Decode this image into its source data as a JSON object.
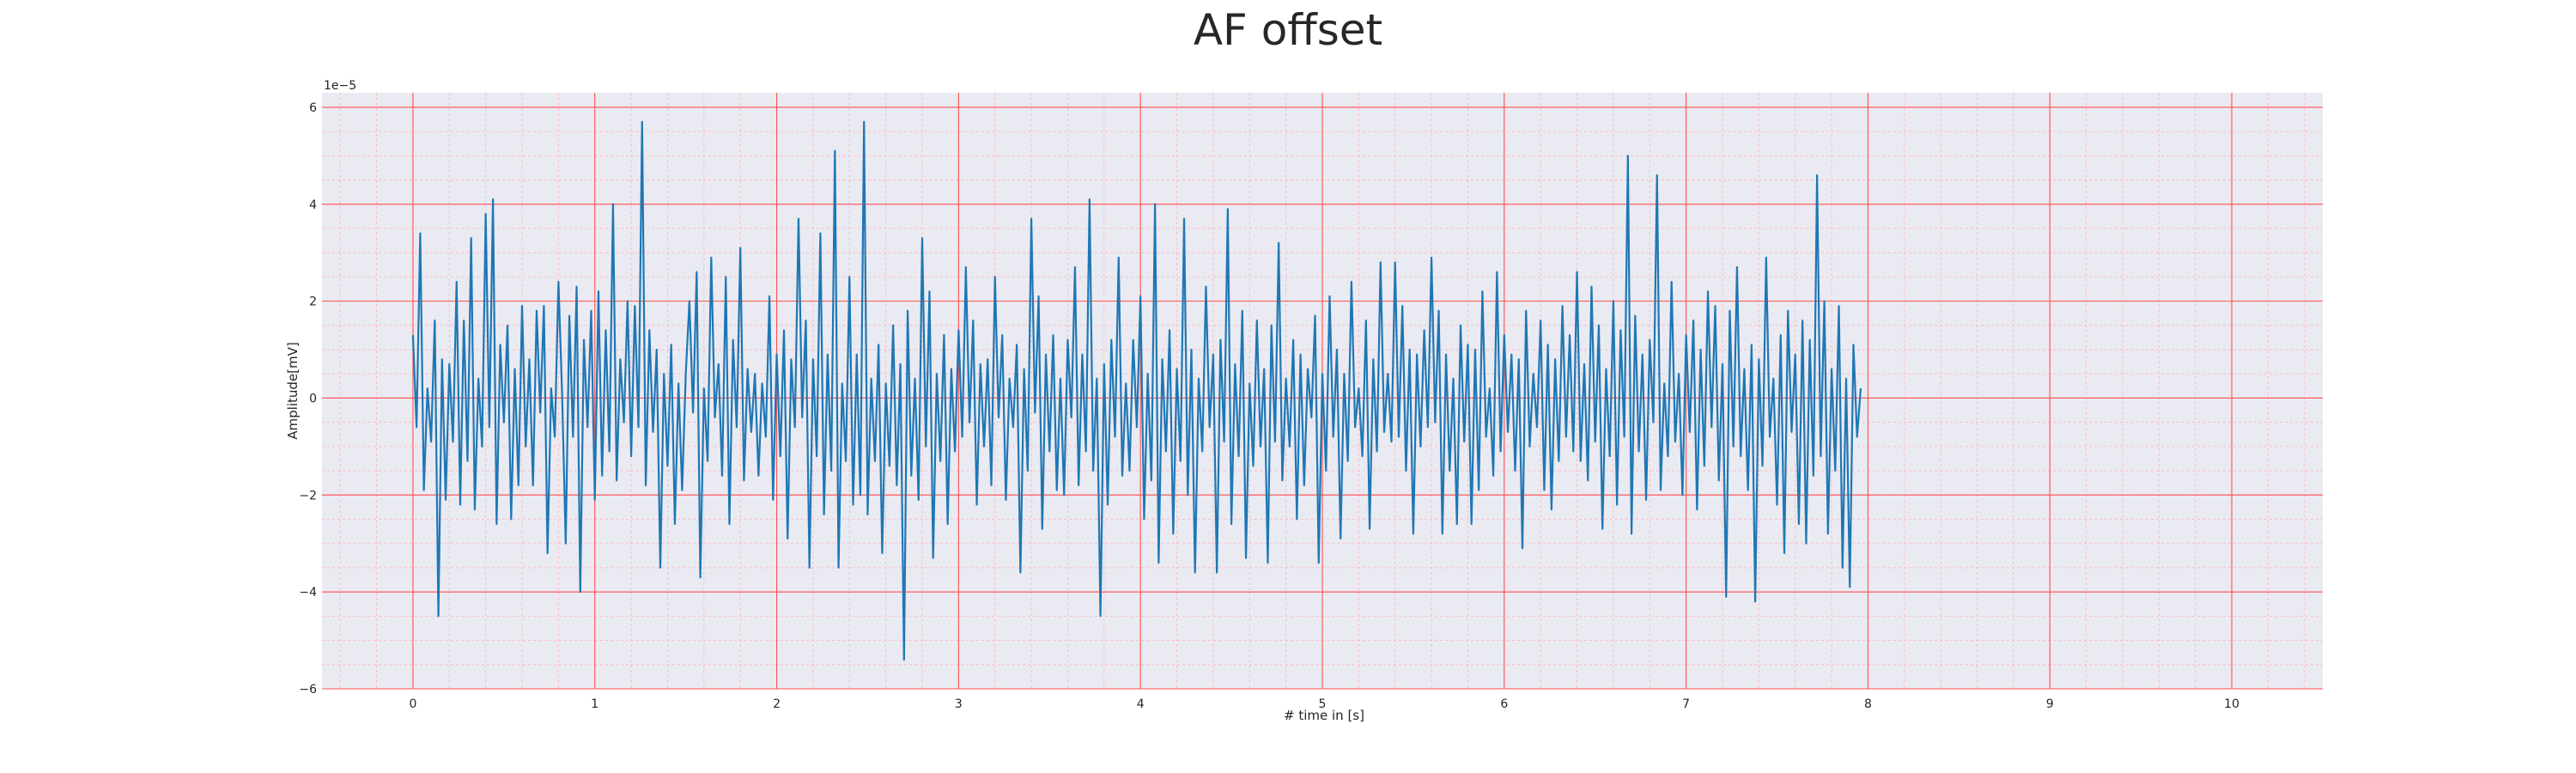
{
  "chart_data": {
    "type": "line",
    "title": "AF offset",
    "xlabel": "# time in [s]",
    "ylabel": "Amplitude[mV]",
    "y_offset_text": "1e−5",
    "xlim": [
      -0.5,
      10.5
    ],
    "ylim": [
      -6,
      6.3
    ],
    "x_ticks": [
      0,
      1,
      2,
      3,
      4,
      5,
      6,
      7,
      8,
      9,
      10
    ],
    "y_ticks": [
      -6,
      -4,
      -2,
      0,
      2,
      4,
      6
    ],
    "grid": true,
    "minor_grid": true,
    "colors": {
      "background": "#eaeaf2",
      "major_grid": "#ff5050",
      "minor_grid": "#ffb3b3",
      "line": "#1f77b4",
      "text": "#262626"
    },
    "series": [
      {
        "x_start": 0,
        "x_step": 0.02,
        "values": [
          1.3,
          -0.6,
          3.4,
          -1.9,
          0.2,
          -0.9,
          1.6,
          -4.5,
          0.8,
          -2.1,
          0.7,
          -0.9,
          2.4,
          -2.2,
          1.6,
          -1.3,
          3.3,
          -2.3,
          0.4,
          -1.0,
          3.8,
          -0.6,
          4.1,
          -2.6,
          1.1,
          -0.5,
          1.5,
          -2.5,
          0.6,
          -1.8,
          1.9,
          -1.0,
          0.8,
          -1.8,
          1.8,
          -0.3,
          1.9,
          -3.2,
          0.2,
          -0.8,
          2.4,
          0.1,
          -3.0,
          1.7,
          -0.8,
          2.3,
          -4.0,
          1.2,
          -0.6,
          1.8,
          -2.1,
          2.2,
          -1.6,
          1.4,
          -1.1,
          4.0,
          -1.7,
          0.8,
          -0.5,
          2.0,
          -1.2,
          1.9,
          -0.6,
          5.7,
          -1.8,
          1.4,
          -0.7,
          1.0,
          -3.5,
          0.5,
          -1.4,
          1.1,
          -2.6,
          0.3,
          -1.9,
          0.5,
          2.0,
          -0.3,
          2.6,
          -3.7,
          0.2,
          -1.3,
          2.9,
          -0.4,
          0.7,
          -1.6,
          2.5,
          -2.6,
          1.2,
          -0.6,
          3.1,
          -1.7,
          0.6,
          -0.7,
          0.5,
          -1.6,
          0.3,
          -0.8,
          2.1,
          -2.1,
          0.9,
          -1.2,
          1.4,
          -2.9,
          0.8,
          -0.6,
          3.7,
          -0.4,
          1.6,
          -3.5,
          0.8,
          -1.2,
          3.4,
          -2.4,
          0.9,
          -1.5,
          5.1,
          -3.5,
          0.3,
          -1.3,
          2.5,
          -2.2,
          0.9,
          -2.0,
          5.7,
          -2.4,
          0.4,
          -1.3,
          1.1,
          -3.2,
          0.3,
          -1.4,
          1.5,
          -1.8,
          0.7,
          -5.4,
          1.8,
          -1.6,
          0.4,
          -2.1,
          3.3,
          -1.0,
          2.2,
          -3.3,
          0.5,
          -1.3,
          1.3,
          -2.6,
          0.6,
          -1.1,
          1.4,
          -0.8,
          2.7,
          -0.5,
          1.6,
          -2.2,
          0.7,
          -1.0,
          0.8,
          -1.8,
          2.5,
          -0.4,
          1.3,
          -2.1,
          0.4,
          -0.6,
          1.1,
          -3.6,
          0.6,
          -1.5,
          3.7,
          -0.3,
          2.1,
          -2.7,
          0.9,
          -1.1,
          1.3,
          -1.9,
          0.4,
          -2.0,
          1.2,
          -0.4,
          2.7,
          -1.8,
          0.9,
          -1.1,
          4.1,
          -1.5,
          0.4,
          -4.5,
          0.7,
          -2.2,
          1.2,
          -0.8,
          2.9,
          -1.6,
          0.3,
          -1.5,
          1.2,
          -0.6,
          2.1,
          -2.5,
          0.5,
          -1.7,
          4.0,
          -3.4,
          0.8,
          -1.1,
          1.4,
          -2.8,
          0.6,
          -1.3,
          3.7,
          -2.0,
          1.0,
          -3.6,
          0.4,
          -1.1,
          2.3,
          -0.6,
          0.9,
          -3.6,
          1.2,
          -0.9,
          3.9,
          -2.6,
          0.7,
          -1.2,
          1.8,
          -3.3,
          0.3,
          -1.4,
          1.6,
          -1.0,
          0.6,
          -3.4,
          1.5,
          -0.9,
          3.2,
          -1.7,
          0.4,
          -1.0,
          1.2,
          -2.5,
          0.9,
          -1.8,
          0.6,
          -0.4,
          1.7,
          -3.4,
          0.5,
          -1.5,
          2.1,
          -0.8,
          1.0,
          -2.9,
          0.5,
          -1.3,
          2.4,
          -0.6,
          0.2,
          -1.2,
          1.6,
          -2.7,
          0.8,
          -1.1,
          2.8,
          -0.7,
          0.5,
          -0.9,
          2.8,
          -0.8,
          1.9,
          -1.5,
          1.0,
          -2.8,
          0.9,
          -1.0,
          1.4,
          -0.6,
          2.9,
          -0.5,
          1.8,
          -2.8,
          0.9,
          -1.5,
          0.4,
          -2.6,
          1.5,
          -0.9,
          1.1,
          -2.6,
          1.0,
          -1.9,
          2.2,
          -0.8,
          0.2,
          -1.6,
          2.6,
          -1.1,
          1.3,
          -0.7,
          0.9,
          -1.5,
          0.8,
          -3.1,
          1.8,
          -1.0,
          0.5,
          -0.6,
          1.6,
          -1.9,
          1.1,
          -2.3,
          0.8,
          -1.3,
          1.9,
          -0.8,
          1.3,
          -1.1,
          2.6,
          -1.3,
          0.7,
          -1.7,
          2.3,
          -0.9,
          1.5,
          -2.7,
          0.6,
          -1.2,
          2.0,
          -2.2,
          1.4,
          -0.8,
          5.0,
          -2.8,
          1.7,
          -1.1,
          0.9,
          -2.1,
          1.2,
          -0.5,
          4.6,
          -1.9,
          0.3,
          -1.2,
          2.4,
          -0.9,
          0.5,
          -2.0,
          1.3,
          -0.7,
          1.6,
          -2.3,
          1.0,
          -1.4,
          2.2,
          -0.6,
          1.9,
          -1.7,
          0.7,
          -4.1,
          1.8,
          -1.0,
          2.7,
          -1.2,
          0.6,
          -1.9,
          1.1,
          -4.2,
          0.8,
          -1.4,
          2.9,
          -0.8,
          0.4,
          -2.2,
          1.3,
          -3.2,
          1.8,
          -0.7,
          0.9,
          -2.6,
          1.6,
          -3.0,
          1.2,
          -1.6,
          4.6,
          -1.2,
          2.0,
          -2.8,
          0.6,
          -1.5,
          1.9,
          -3.5,
          0.4,
          -3.9,
          1.1,
          -0.8,
          0.2
        ]
      }
    ]
  }
}
